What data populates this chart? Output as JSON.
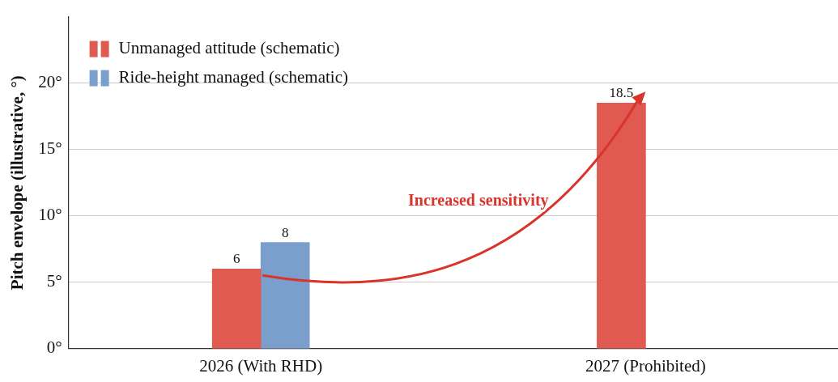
{
  "chart_data": {
    "type": "bar",
    "ylabel": "Pitch envelope (illustrative, °)",
    "categories": [
      "2026 (With RHD)",
      "2027 (Prohibited)"
    ],
    "series": [
      {
        "name": "Unmanaged attitude (schematic)",
        "color": "#e05a52",
        "values": [
          6,
          18.5
        ]
      },
      {
        "name": "Ride-height managed (schematic)",
        "color": "#7b9fcc",
        "values": [
          8,
          null
        ]
      }
    ],
    "ylim": [
      0,
      25
    ],
    "yticks": [
      {
        "value": 0,
        "label": "0°"
      },
      {
        "value": 5,
        "label": "5°"
      },
      {
        "value": 10,
        "label": "10°"
      },
      {
        "value": 15,
        "label": "15°"
      },
      {
        "value": 20,
        "label": "20°"
      }
    ],
    "grid": "y",
    "legend": "top left",
    "data_labels": true,
    "annotations": [
      "Increased sensitivity"
    ]
  }
}
